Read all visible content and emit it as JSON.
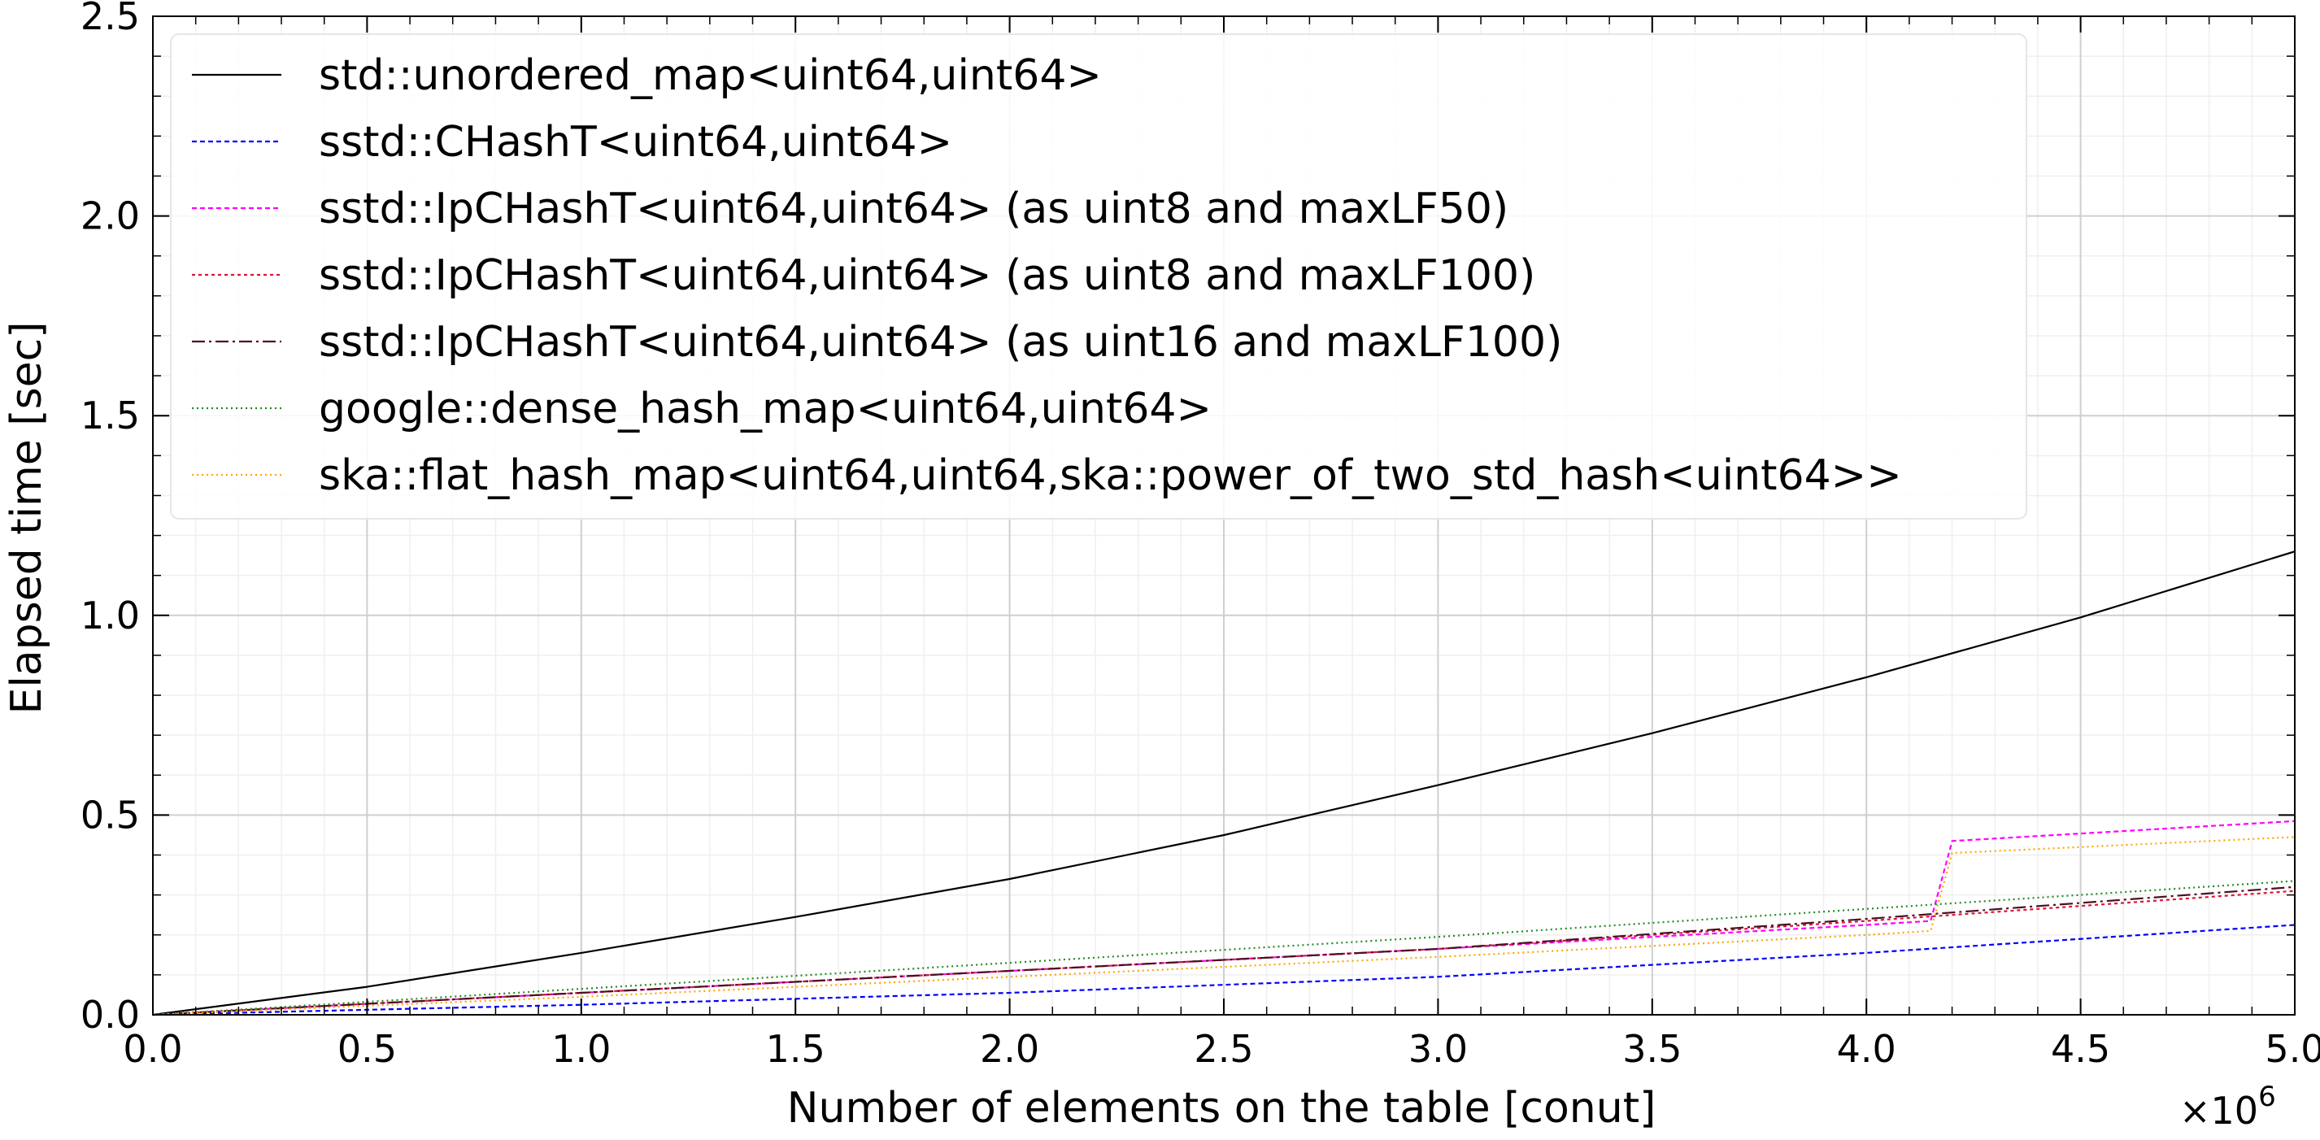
{
  "chart_data": {
    "type": "line",
    "title": "",
    "xlabel": "Number of elements on the table [conut]",
    "ylabel": "Elapsed time [sec]",
    "x_multiplier_label": "×10",
    "x_multiplier_exp": "6",
    "xlim": [
      0,
      5.0
    ],
    "ylim": [
      0,
      2.5
    ],
    "x_ticks": [
      0.0,
      0.5,
      1.0,
      1.5,
      2.0,
      2.5,
      3.0,
      3.5,
      4.0,
      4.5,
      5.0
    ],
    "x_tick_labels": [
      "0.0",
      "0.5",
      "1.0",
      "1.5",
      "2.0",
      "2.5",
      "3.0",
      "3.5",
      "4.0",
      "4.5",
      "5.0"
    ],
    "y_ticks": [
      0.0,
      0.5,
      1.0,
      1.5,
      2.0,
      2.5
    ],
    "y_tick_labels": [
      "0.0",
      "0.5",
      "1.0",
      "1.5",
      "2.0",
      "2.5"
    ],
    "grid": true,
    "legend_position": "top-left",
    "series": [
      {
        "name": "std::unordered_map<uint64,uint64>",
        "color": "#000000",
        "dash": "",
        "x": [
          0.0,
          0.5,
          1.0,
          1.5,
          2.0,
          2.5,
          3.0,
          3.5,
          4.0,
          4.5,
          5.0
        ],
        "y": [
          0.0,
          0.07,
          0.155,
          0.245,
          0.34,
          0.45,
          0.575,
          0.705,
          0.845,
          0.995,
          1.16
        ]
      },
      {
        "name": "sstd::CHashT<uint64,uint64>",
        "color": "#0000ff",
        "dash": "6,4",
        "x": [
          0.0,
          1.0,
          2.0,
          3.0,
          4.0,
          5.0
        ],
        "y": [
          0.0,
          0.025,
          0.055,
          0.095,
          0.155,
          0.225
        ]
      },
      {
        "name": "sstd::IpCHashT<uint64,uint64> (as uint8 and maxLF50)",
        "color": "#ff00ff",
        "dash": "6,4",
        "x": [
          0.0,
          1.0,
          2.0,
          3.0,
          4.0,
          4.15,
          4.2,
          5.0
        ],
        "y": [
          0.0,
          0.055,
          0.11,
          0.165,
          0.225,
          0.235,
          0.435,
          0.485
        ]
      },
      {
        "name": "sstd::IpCHashT<uint64,uint64> (as uint8 and maxLF100)",
        "color": "#dc143c",
        "dash": "4,4",
        "x": [
          0.0,
          1.0,
          2.0,
          3.0,
          4.0,
          5.0
        ],
        "y": [
          0.0,
          0.055,
          0.11,
          0.165,
          0.235,
          0.31
        ]
      },
      {
        "name": "sstd::IpCHashT<uint64,uint64> (as uint16 and maxLF100)",
        "color": "#4a1020",
        "dash": "16,5,3,5",
        "x": [
          0.0,
          1.0,
          2.0,
          3.0,
          4.0,
          5.0
        ],
        "y": [
          0.0,
          0.055,
          0.11,
          0.165,
          0.24,
          0.32
        ]
      },
      {
        "name": "google::dense_hash_map<uint64,uint64>",
        "color": "#228b22",
        "dash": "2,4",
        "x": [
          0.0,
          1.0,
          2.0,
          3.0,
          4.0,
          5.0
        ],
        "y": [
          0.0,
          0.065,
          0.13,
          0.195,
          0.265,
          0.335
        ]
      },
      {
        "name": "ska::flat_hash_map<uint64,uint64,ska::power_of_two_std_hash<uint64>>",
        "color": "#ffa500",
        "dash": "2,4",
        "x": [
          0.0,
          1.0,
          2.0,
          3.0,
          4.0,
          4.15,
          4.2,
          5.0
        ],
        "y": [
          0.0,
          0.045,
          0.095,
          0.145,
          0.2,
          0.21,
          0.405,
          0.445
        ]
      }
    ]
  }
}
